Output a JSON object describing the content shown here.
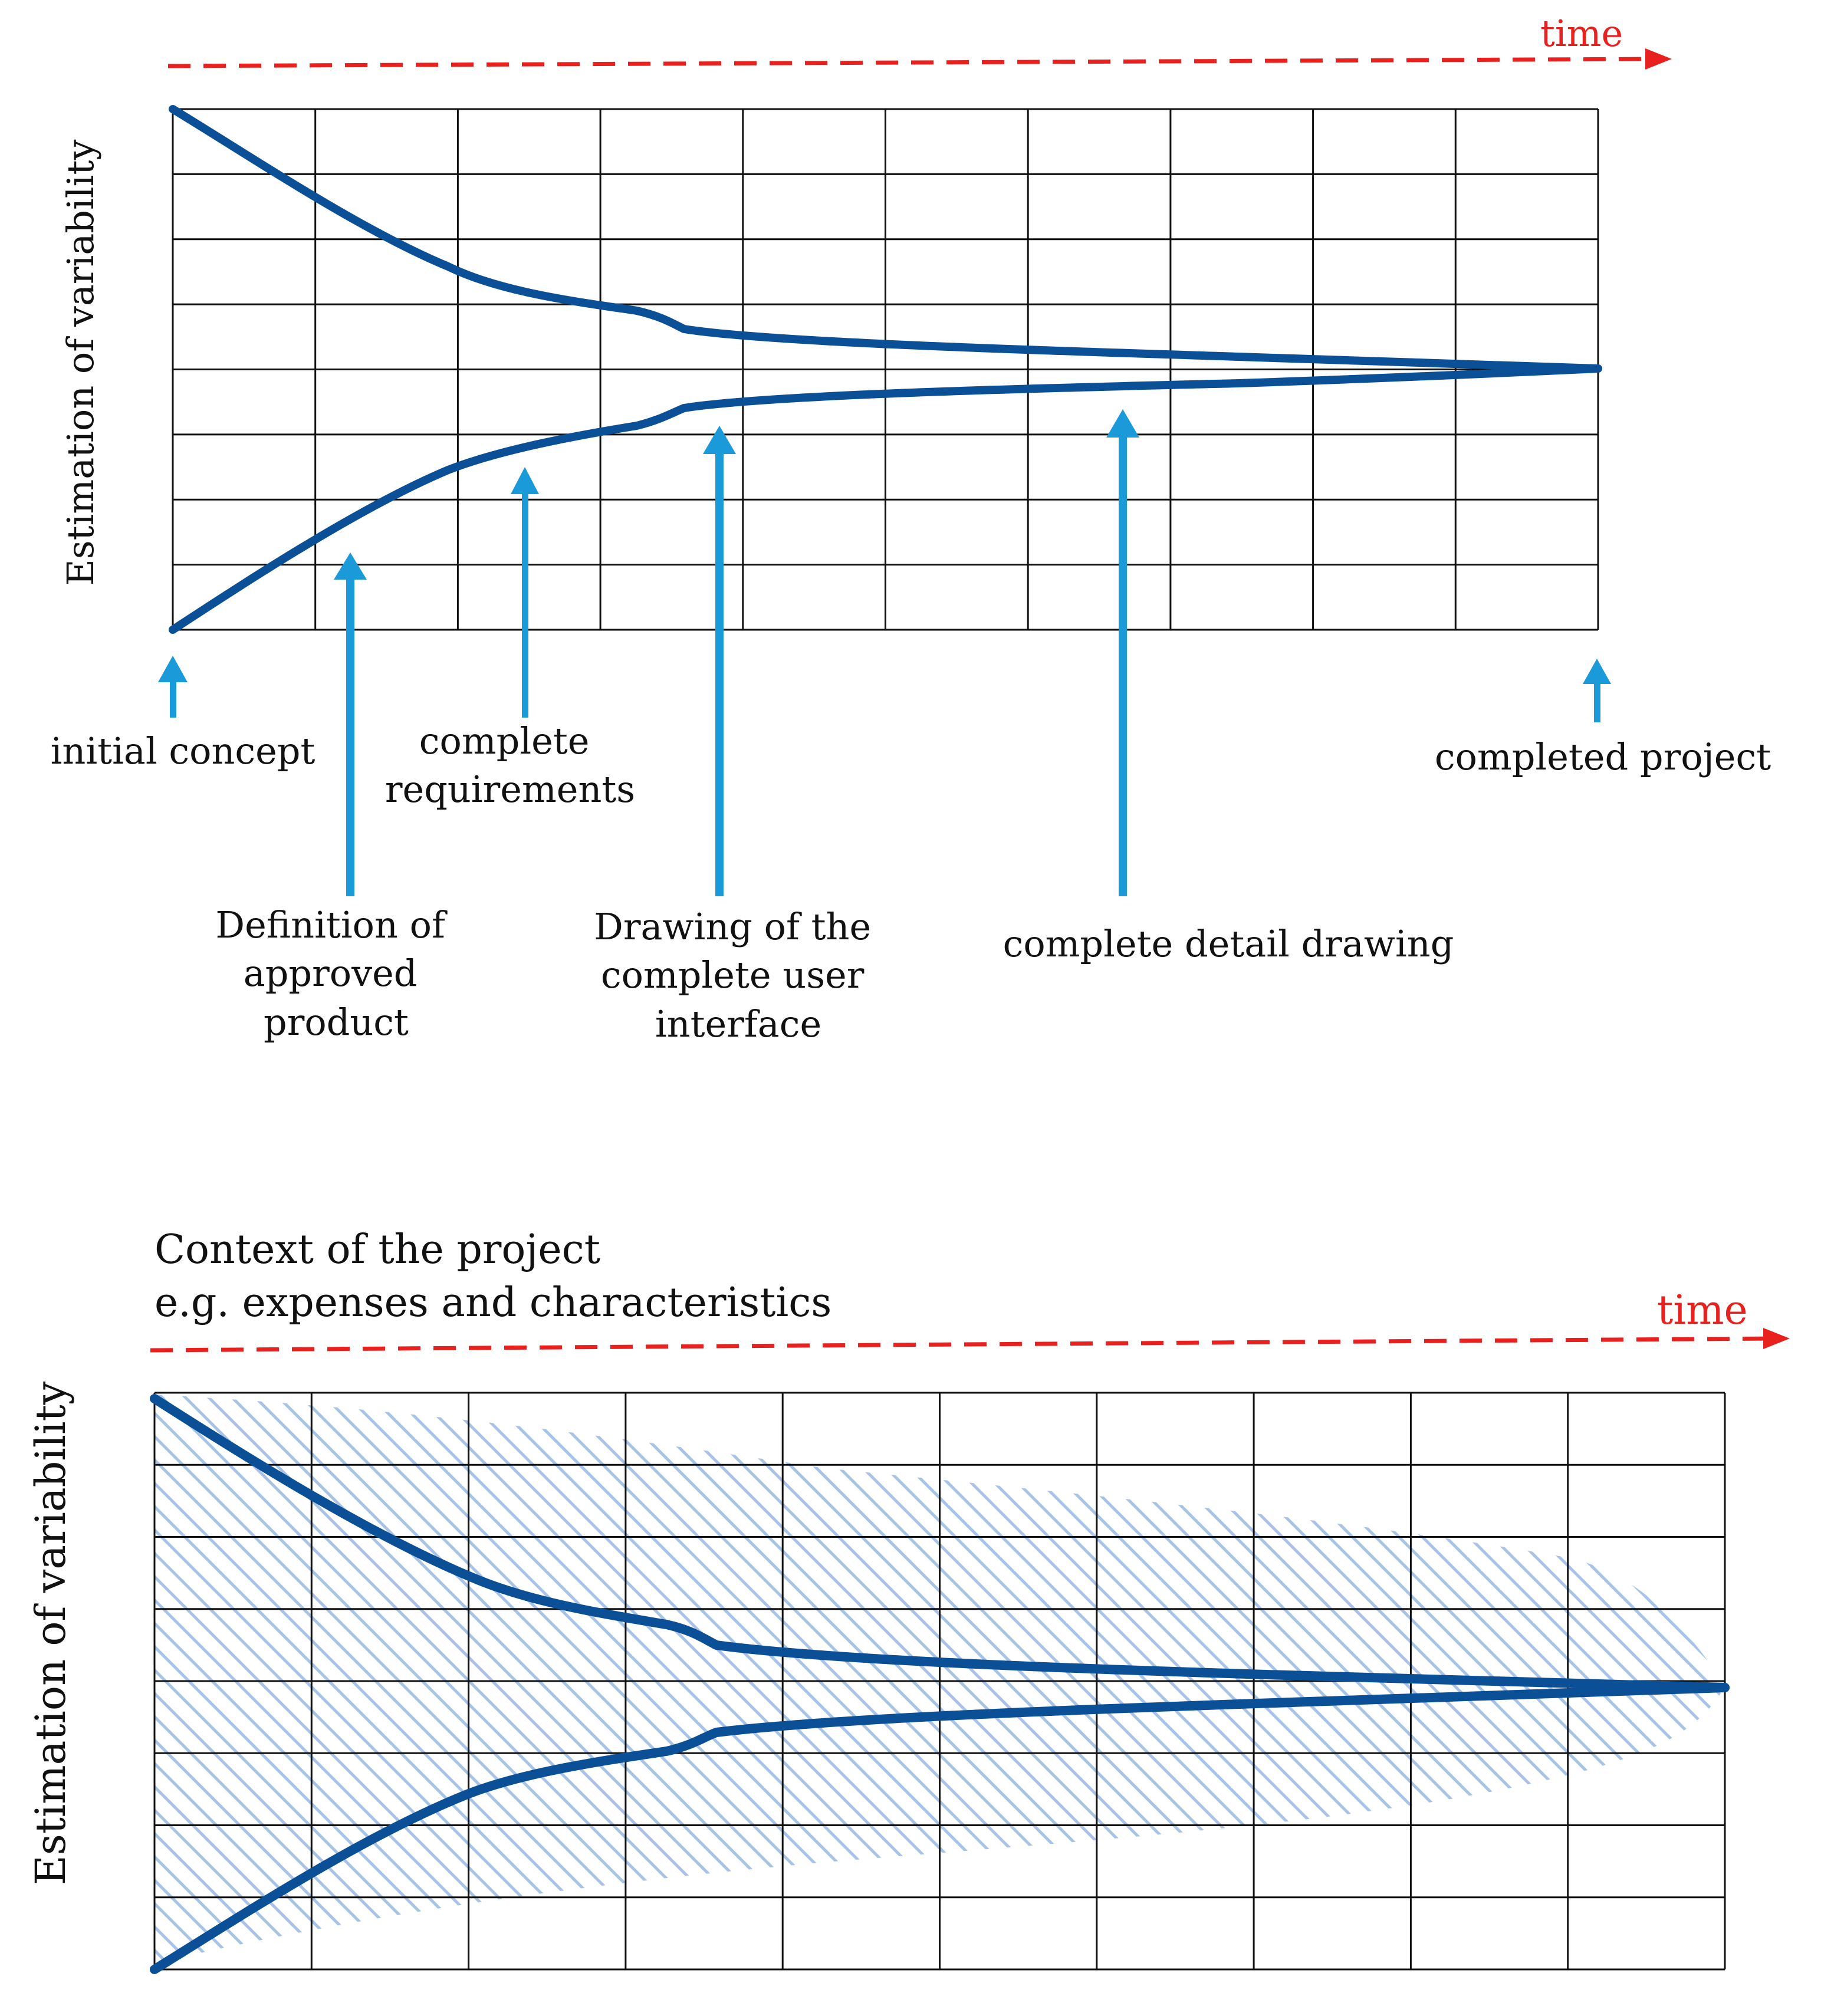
{
  "colors": {
    "curve": "#0b4f96",
    "marker": "#1a9ad9",
    "grid": "#111111",
    "time_arrow": "#e8211e",
    "hatch": "#a9c3e6"
  },
  "top_diagram": {
    "time_label": "time",
    "y_axis_label": "Estimation of variability",
    "milestones": [
      {
        "lines": [
          "initial concept"
        ]
      },
      {
        "lines": [
          "Definition of",
          "approved",
          "product"
        ]
      },
      {
        "lines": [
          "complete",
          "requirements"
        ]
      },
      {
        "lines": [
          "Drawing of the",
          "complete user",
          "interface"
        ]
      },
      {
        "lines": [
          "complete detail drawing"
        ]
      },
      {
        "lines": [
          "completed project"
        ]
      }
    ]
  },
  "bottom_diagram": {
    "title_line1": "Context of the project",
    "title_line2": "e.g. expenses and characteristics",
    "time_label": "time",
    "y_axis_label": "Estimation of variability"
  }
}
